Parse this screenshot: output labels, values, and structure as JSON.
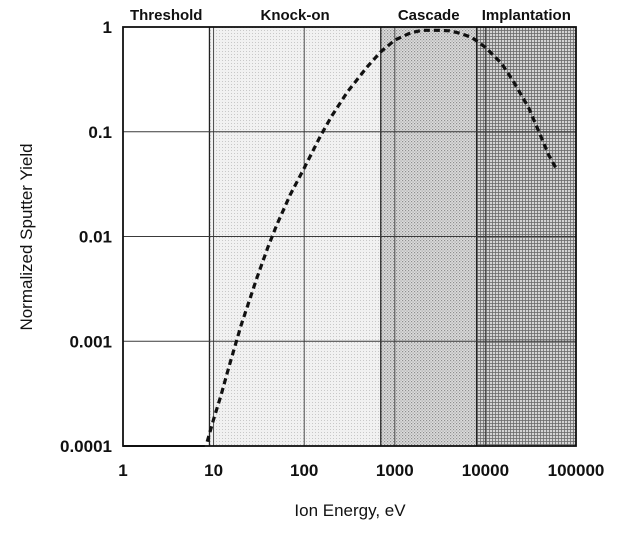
{
  "chart_data": {
    "type": "line",
    "title": "",
    "xlabel": "Ion  Energy, eV",
    "ylabel": "Normalized Sputter Yield",
    "x_scale": "log",
    "y_scale": "log",
    "xlim": [
      1,
      100000
    ],
    "ylim": [
      0.0001,
      1
    ],
    "grid": true,
    "x_ticks": [
      "1",
      "10",
      "100",
      "1000",
      "10000",
      "100000"
    ],
    "y_ticks": [
      "0.0001",
      "0.001",
      "0.01",
      "0.1",
      "1"
    ],
    "regions": [
      {
        "label": "Threshold",
        "x_range": [
          1,
          9
        ],
        "fill": "none"
      },
      {
        "label": "Knock-on",
        "x_range": [
          9,
          700
        ],
        "fill": "light-dots"
      },
      {
        "label": "Cascade",
        "x_range": [
          700,
          8000
        ],
        "fill": "medium-dots"
      },
      {
        "label": "Implantation",
        "x_range": [
          8000,
          100000
        ],
        "fill": "dense-crosshatch"
      }
    ],
    "series": [
      {
        "style": "dashed",
        "x": [
          8.5,
          10,
          12,
          15,
          20,
          30,
          40,
          50,
          70,
          100,
          150,
          200,
          300,
          500,
          700,
          1000,
          1500,
          2000,
          3000,
          4000,
          5000,
          7000,
          10000,
          15000,
          20000,
          30000,
          40000,
          50000,
          60000
        ],
        "y": [
          0.00011,
          0.00018,
          0.0003,
          0.0006,
          0.0014,
          0.004,
          0.008,
          0.013,
          0.025,
          0.045,
          0.09,
          0.14,
          0.24,
          0.42,
          0.58,
          0.75,
          0.88,
          0.93,
          0.93,
          0.92,
          0.88,
          0.8,
          0.64,
          0.45,
          0.31,
          0.17,
          0.095,
          0.06,
          0.045
        ]
      }
    ],
    "baseline_segment": {
      "x": [
        1,
        8
      ],
      "y": [
        0.0001,
        0.0001
      ]
    }
  }
}
